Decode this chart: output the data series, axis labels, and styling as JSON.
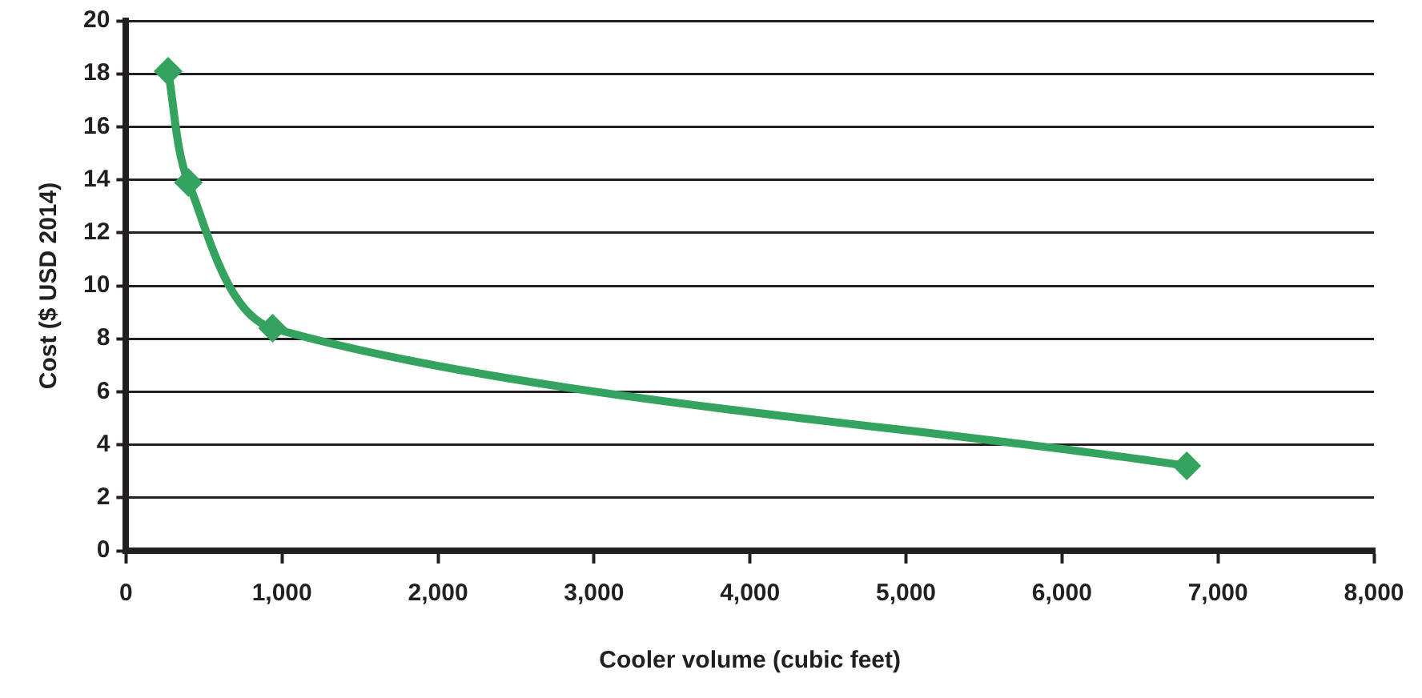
{
  "chart_data": {
    "type": "line",
    "xlabel": "Cooler volume (cubic feet)",
    "ylabel": "Cost ($ USD 2014)",
    "x": [
      270,
      400,
      940,
      6800
    ],
    "series": [
      {
        "color": "#33a35f",
        "values": [
          18.1,
          13.9,
          8.4,
          3.2
        ]
      }
    ],
    "xlim": [
      0,
      8000
    ],
    "xticks": [
      {
        "value": 0,
        "label": "0"
      },
      {
        "value": 1000,
        "label": "1,000"
      },
      {
        "value": 2000,
        "label": "2,000"
      },
      {
        "value": 3000,
        "label": "3,000"
      },
      {
        "value": 4000,
        "label": "4,000"
      },
      {
        "value": 5000,
        "label": "5,000"
      },
      {
        "value": 6000,
        "label": "6,000"
      },
      {
        "value": 7000,
        "label": "7,000"
      },
      {
        "value": 8000,
        "label": "8,000"
      }
    ],
    "ylim": [
      0,
      20
    ],
    "yticks": [
      0,
      2,
      4,
      6,
      8,
      10,
      12,
      14,
      16,
      18,
      20
    ],
    "grid": "y",
    "legend": false,
    "marker": "diamond",
    "line_style": "solid"
  }
}
